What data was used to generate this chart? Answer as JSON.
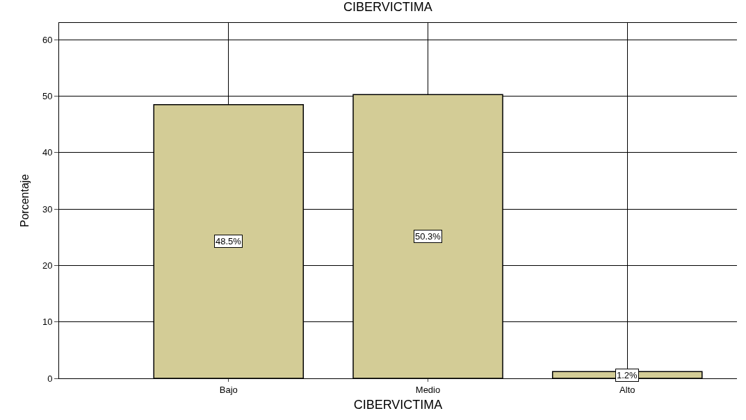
{
  "chart_data": {
    "type": "bar",
    "title": "CIBERVICTIMA",
    "xlabel": "CIBERVICTIMA",
    "ylabel": "Porcentaje",
    "categories": [
      "Bajo",
      "Medio",
      "Alto"
    ],
    "values": [
      48.5,
      50.3,
      1.2
    ],
    "value_labels": [
      "48.5%",
      "50.3%",
      "1.2%"
    ],
    "color": "#d3cc96",
    "ylim": [
      0,
      63
    ],
    "yticks": [
      0,
      10,
      20,
      30,
      40,
      50,
      60
    ],
    "grid": true,
    "legend": false
  }
}
